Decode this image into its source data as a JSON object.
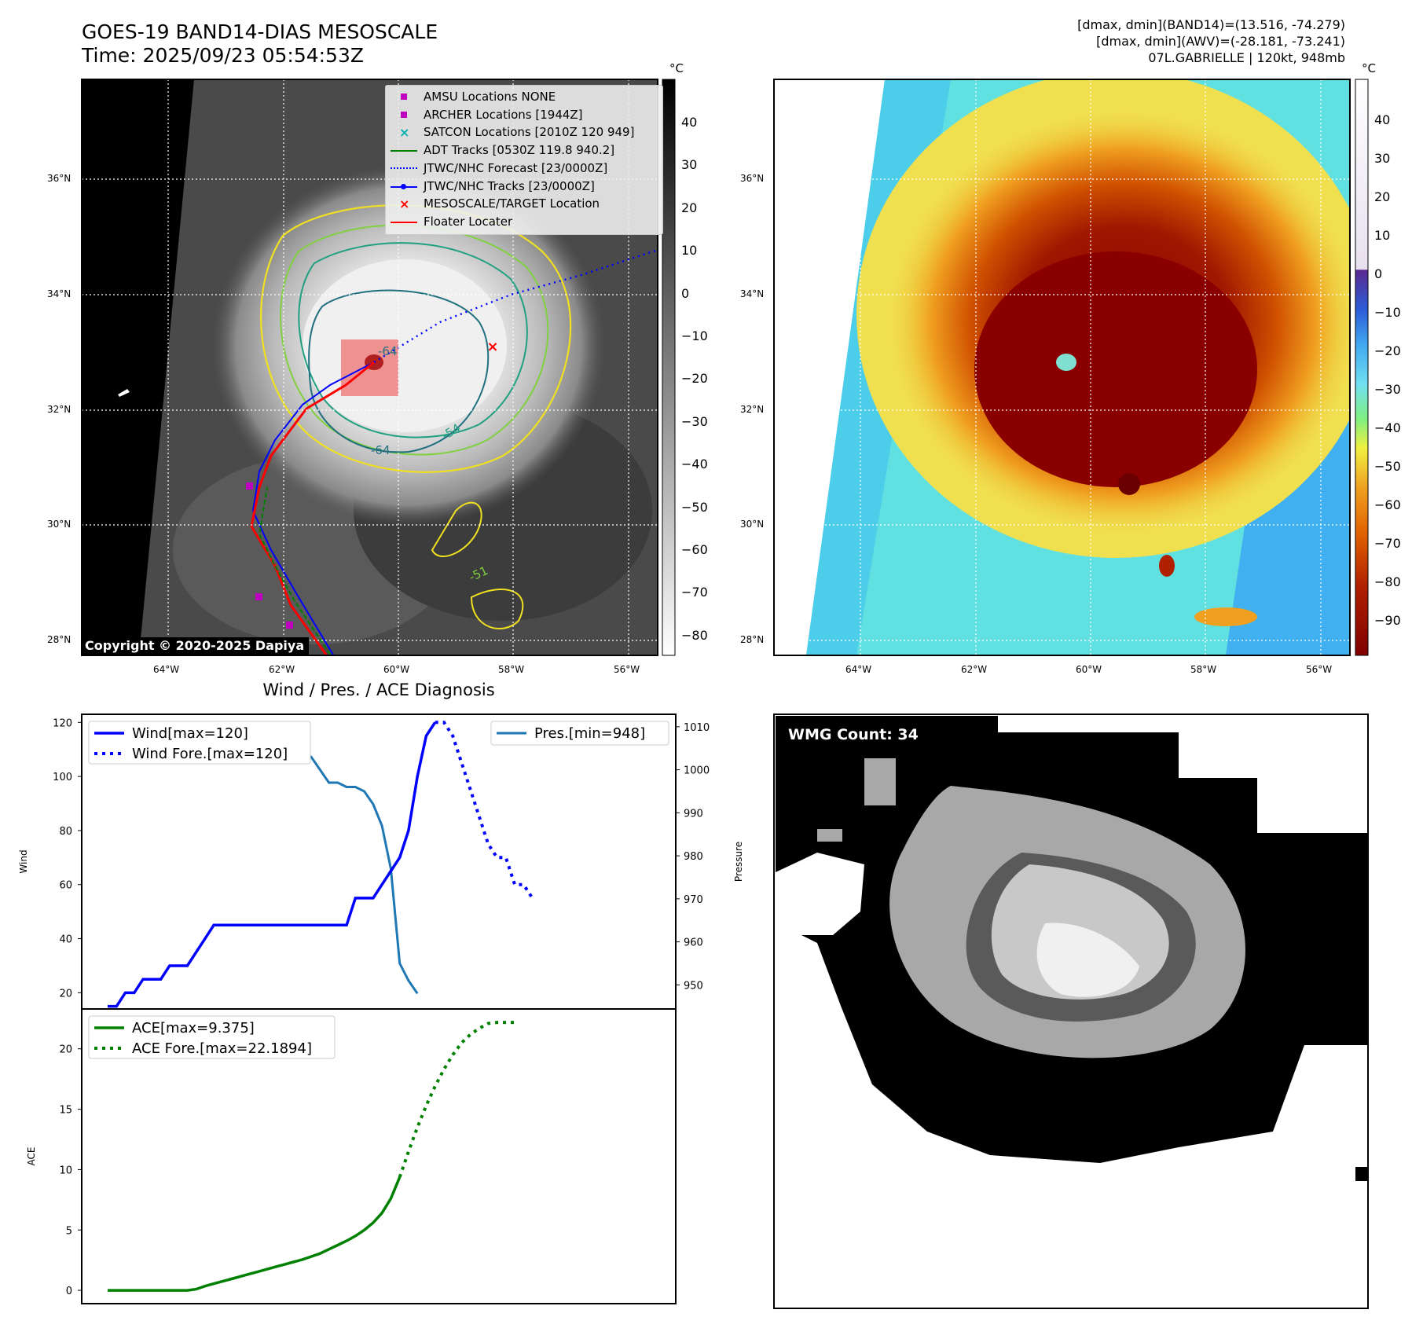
{
  "header": {
    "title_line1": "GOES-19 BAND14-DIAS MESOSCALE",
    "title_line2": "Time: 2025/09/23 05:54:53Z",
    "info_line1": "[dmax, dmin](BAND14)=(13.516, -74.279)",
    "info_line2": "[dmax, dmin](AWV)=(-28.181, -73.241)",
    "info_line3": "07L.GABRIELLE | 120kt, 948mb"
  },
  "map": {
    "lat_labels": [
      "36°N",
      "34°N",
      "32°N",
      "30°N",
      "28°N"
    ],
    "lon_labels": [
      "64°W",
      "62°W",
      "60°W",
      "58°W",
      "56°W"
    ],
    "copyright": "Copyright © 2020-2025 Dapiya",
    "contour_labels": [
      "-64",
      "-64",
      "-54",
      "-51"
    ],
    "colors": {
      "mesoscale_box": "#f08080",
      "track": "#ff0000",
      "forecast": "#0000ff",
      "adt": "#008000"
    }
  },
  "legend": {
    "items": [
      {
        "label": "AMSU Locations NONE",
        "marker": "square",
        "color": "#c000c0"
      },
      {
        "label": "ARCHER Locations [1944Z]",
        "marker": "square",
        "color": "#c000c0"
      },
      {
        "label": "SATCON Locations [2010Z 120 949]",
        "marker": "x",
        "color": "#00b0b0"
      },
      {
        "label": "ADT Tracks [0530Z 119.8 940.2]",
        "marker": "line",
        "color": "#008000"
      },
      {
        "label": "JTWC/NHC Forecast [23/0000Z]",
        "marker": "dotted",
        "color": "#0000ff"
      },
      {
        "label": "JTWC/NHC Tracks [23/0000Z]",
        "marker": "line-dot",
        "color": "#0000ff"
      },
      {
        "label": "MESOSCALE/TARGET Location",
        "marker": "x",
        "color": "#ff0000"
      },
      {
        "label": "Floater Locater",
        "marker": "line",
        "color": "#ff0000"
      }
    ]
  },
  "colorbar_gray": {
    "unit": "°C",
    "ticks": [
      "40",
      "30",
      "20",
      "10",
      "0",
      "−10",
      "−20",
      "−30",
      "−40",
      "−50",
      "−60",
      "−70",
      "−80"
    ]
  },
  "colorbar_color": {
    "unit": "°C",
    "ticks": [
      "40",
      "30",
      "20",
      "10",
      "0",
      "−10",
      "−20",
      "−30",
      "−40",
      "−50",
      "−60",
      "−70",
      "−80",
      "−90"
    ]
  },
  "wmg": {
    "label": "WMG Count: 34"
  },
  "chart_data": [
    {
      "type": "line",
      "title": "Wind / Pres. / ACE Diagnosis",
      "ylabel": "Wind",
      "y2label": "Pressure",
      "ylim": [
        14,
        123
      ],
      "y2lim": [
        944.4,
        1012.9
      ],
      "yticks": [
        20,
        40,
        60,
        80,
        100,
        120
      ],
      "y2ticks": [
        950,
        960,
        970,
        980,
        990,
        1000,
        1010
      ],
      "series": [
        {
          "name": "Wind[max=120]",
          "style": "solid",
          "color": "#0000ff",
          "values": [
            15,
            15,
            20,
            20,
            25,
            25,
            25,
            30,
            30,
            30,
            35,
            40,
            45,
            45,
            45,
            45,
            45,
            45,
            45,
            45,
            45,
            45,
            45,
            45,
            45,
            45,
            45,
            45,
            55,
            55,
            55,
            60,
            65,
            70,
            80,
            100,
            115,
            120
          ]
        },
        {
          "name": "Wind Fore.[max=120]",
          "style": "dotted",
          "color": "#0000ff",
          "values": [
            120,
            120,
            115,
            105,
            95,
            85,
            75,
            70,
            70,
            60,
            60,
            55
          ]
        },
        {
          "name": "Pres.[min=948]",
          "style": "solid",
          "color": "#1f77b4",
          "axis": "right",
          "values": [
            1010,
            1010,
            1009,
            1009,
            1009,
            1008,
            1008,
            1007,
            1006,
            1006,
            1005,
            1005,
            1004,
            1004,
            1004,
            1004,
            1004,
            1004,
            1004,
            1004,
            1004,
            1004,
            1004,
            1003,
            1000,
            997,
            997,
            996,
            996,
            995,
            992,
            987,
            977,
            955,
            951,
            948
          ]
        }
      ]
    },
    {
      "type": "line",
      "ylabel": "ACE",
      "ylim": [
        -1.1,
        23.3
      ],
      "yticks": [
        0,
        5,
        10,
        15,
        20
      ],
      "series": [
        {
          "name": "ACE[max=9.375]",
          "style": "solid",
          "color": "#008000",
          "values": [
            0,
            0,
            0,
            0,
            0,
            0,
            0,
            0,
            0,
            0,
            0.1,
            0.35,
            0.55,
            0.75,
            0.95,
            1.15,
            1.35,
            1.55,
            1.75,
            1.95,
            2.15,
            2.35,
            2.55,
            2.8,
            3.05,
            3.4,
            3.75,
            4.1,
            4.5,
            5.0,
            5.6,
            6.4,
            7.6,
            9.375
          ]
        },
        {
          "name": "ACE Fore.[max=22.1894]",
          "style": "dotted",
          "color": "#008000",
          "values": [
            9.375,
            11.5,
            13.5,
            15.3,
            16.9,
            18.3,
            19.5,
            20.5,
            21.2,
            21.7,
            22.1,
            22.1894,
            22.1894,
            22.1894
          ]
        }
      ]
    }
  ]
}
